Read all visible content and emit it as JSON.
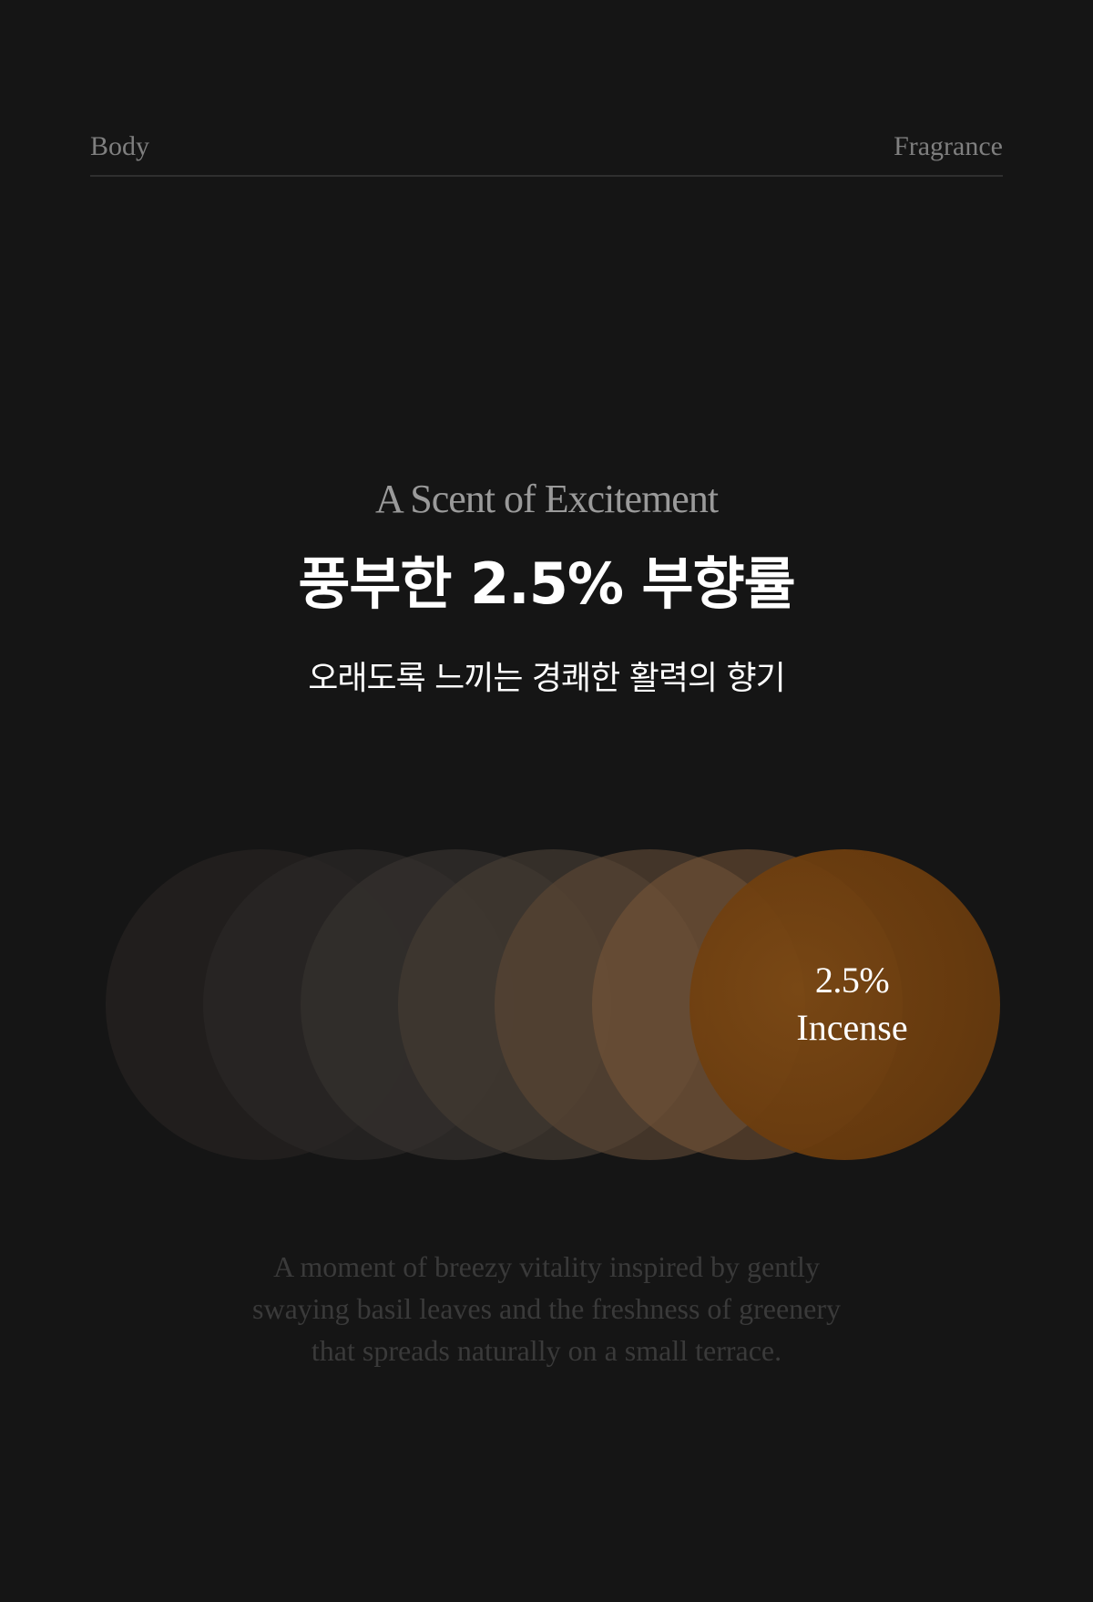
{
  "topbar": {
    "left_label": "Body",
    "right_label": "Fragrance"
  },
  "hero": {
    "subtitle_en": "A Scent of Excitement",
    "title_ko": "풍부한 2.5% 부향률",
    "desc_ko": "오래도록 느끼는 경쾌한 활력의 향기"
  },
  "highlight": {
    "percent": "2.5%",
    "label": "Incense"
  },
  "paragraph": {
    "lines": [
      "A moment of breezy vitality inspired by gently",
      "swaying basil leaves and the freshness of greenery",
      "that spreads naturally on a small terrace."
    ]
  },
  "colors": {
    "background": "#151515",
    "accent": "#6b3c0e",
    "text": "#ffffff",
    "muted": "#7f7f7f"
  }
}
